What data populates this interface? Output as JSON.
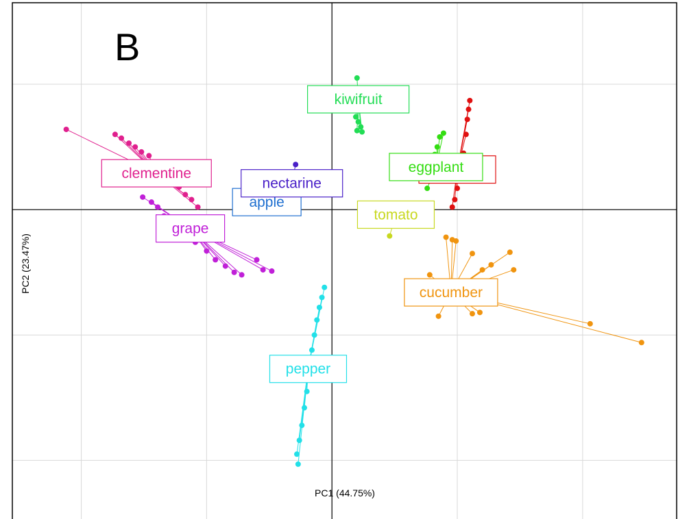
{
  "panel_letter": "B",
  "chart_data": {
    "type": "scatter",
    "title": "",
    "xlabel": "PC1 (44.75%)",
    "ylabel": "PC2 (23.47%)",
    "xlim": [
      -2.55,
      2.75
    ],
    "ylim": [
      -2.5,
      1.65
    ],
    "grid": true,
    "legend": "none",
    "series": [
      {
        "name": "clementine",
        "color": "#e0208e",
        "label_at": [
          -1.4,
          0.29
        ],
        "points": [
          [
            -2.12,
            0.64
          ],
          [
            -1.73,
            0.6
          ],
          [
            -1.68,
            0.57
          ],
          [
            -1.62,
            0.53
          ],
          [
            -1.57,
            0.5
          ],
          [
            -1.52,
            0.46
          ],
          [
            -1.46,
            0.43
          ],
          [
            -1.4,
            0.38
          ],
          [
            -1.34,
            0.32
          ],
          [
            -1.28,
            0.26
          ],
          [
            -1.22,
            0.18
          ],
          [
            -1.17,
            0.12
          ],
          [
            -1.12,
            0.08
          ],
          [
            -1.07,
            0.02
          ]
        ]
      },
      {
        "name": "grape",
        "color": "#c020d8",
        "label_at": [
          -1.13,
          -0.15
        ],
        "points": [
          [
            -1.51,
            0.1
          ],
          [
            -1.44,
            0.06
          ],
          [
            -1.39,
            0.02
          ],
          [
            -1.34,
            -0.05
          ],
          [
            -1.27,
            -0.14
          ],
          [
            -1.18,
            -0.2
          ],
          [
            -1.09,
            -0.26
          ],
          [
            -1.0,
            -0.33
          ],
          [
            -0.93,
            -0.4
          ],
          [
            -0.85,
            -0.45
          ],
          [
            -0.78,
            -0.5
          ],
          [
            -0.72,
            -0.52
          ],
          [
            -0.6,
            -0.4
          ],
          [
            -0.55,
            -0.48
          ],
          [
            -0.48,
            -0.49
          ]
        ]
      },
      {
        "name": "apple",
        "color": "#1e6fd0",
        "label_at": [
          -0.52,
          0.06
        ],
        "points": []
      },
      {
        "name": "nectarine",
        "color": "#4a20c8",
        "label_at": [
          -0.32,
          0.21
        ],
        "points": [
          [
            -0.29,
            0.36
          ]
        ]
      },
      {
        "name": "kiwifruit",
        "color": "#22dd55",
        "label_at": [
          0.21,
          0.88
        ],
        "points": [
          [
            0.2,
            1.05
          ],
          [
            0.19,
            0.74
          ],
          [
            0.21,
            0.7
          ],
          [
            0.23,
            0.66
          ],
          [
            0.2,
            0.63
          ],
          [
            0.24,
            0.62
          ]
        ]
      },
      {
        "name": "cherry",
        "color": "#e01010",
        "label_at": [
          1.0,
          0.32
        ],
        "points": [
          [
            1.1,
            0.87
          ],
          [
            1.09,
            0.8
          ],
          [
            1.08,
            0.72
          ],
          [
            1.07,
            0.6
          ],
          [
            1.05,
            0.45
          ],
          [
            1.03,
            0.3
          ],
          [
            1.0,
            0.17
          ],
          [
            0.98,
            0.08
          ],
          [
            0.96,
            0.02
          ]
        ]
      },
      {
        "name": "eggplant",
        "color": "#33dd11",
        "label_at": [
          0.83,
          0.34
        ],
        "points": [
          [
            0.89,
            0.61
          ],
          [
            0.86,
            0.58
          ],
          [
            0.84,
            0.5
          ],
          [
            0.82,
            0.44
          ],
          [
            0.8,
            0.35
          ],
          [
            0.77,
            0.26
          ],
          [
            0.76,
            0.17
          ]
        ]
      },
      {
        "name": "tomato",
        "color": "#c8d820",
        "label_at": [
          0.51,
          -0.04
        ],
        "points": [
          [
            0.46,
            -0.21
          ]
        ]
      },
      {
        "name": "cucumber",
        "color": "#f0940f",
        "label_at": [
          0.95,
          -0.66
        ],
        "points": [
          [
            0.91,
            -0.22
          ],
          [
            0.96,
            -0.24
          ],
          [
            0.99,
            -0.25
          ],
          [
            1.12,
            -0.35
          ],
          [
            1.2,
            -0.48
          ],
          [
            1.27,
            -0.44
          ],
          [
            1.42,
            -0.34
          ],
          [
            1.45,
            -0.48
          ],
          [
            1.3,
            -0.62
          ],
          [
            1.18,
            -0.82
          ],
          [
            1.12,
            -0.83
          ],
          [
            0.85,
            -0.85
          ],
          [
            0.7,
            -0.7
          ],
          [
            0.78,
            -0.52
          ],
          [
            2.06,
            -0.91
          ],
          [
            2.47,
            -1.06
          ]
        ]
      },
      {
        "name": "pepper",
        "color": "#22e0e8",
        "label_at": [
          -0.19,
          -1.27
        ],
        "points": [
          [
            -0.06,
            -0.62
          ],
          [
            -0.08,
            -0.7
          ],
          [
            -0.1,
            -0.78
          ],
          [
            -0.12,
            -0.88
          ],
          [
            -0.14,
            -1.0
          ],
          [
            -0.16,
            -1.12
          ],
          [
            -0.2,
            -1.45
          ],
          [
            -0.22,
            -1.58
          ],
          [
            -0.24,
            -1.72
          ],
          [
            -0.26,
            -1.84
          ],
          [
            -0.28,
            -1.95
          ],
          [
            -0.27,
            -2.03
          ]
        ]
      }
    ]
  }
}
